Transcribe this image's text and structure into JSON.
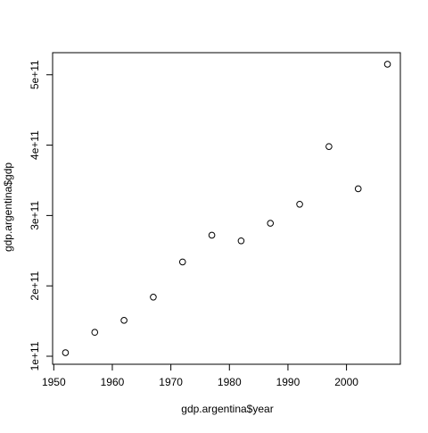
{
  "chart_data": {
    "type": "scatter",
    "xlabel": "gdp.argentina$year",
    "ylabel": "gdp.argentina$gdp",
    "xlim": [
      1950,
      2010
    ],
    "ylim": [
      100000000000,
      530000000000
    ],
    "x_ticks": [
      1950,
      1960,
      1970,
      1980,
      1990,
      2000
    ],
    "y_ticks": [
      100000000000,
      200000000000,
      300000000000,
      400000000000,
      500000000000
    ],
    "x_tick_labels": [
      "1950",
      "1960",
      "1970",
      "1980",
      "1990",
      "2000"
    ],
    "y_tick_labels": [
      "1e+11",
      "2e+11",
      "3e+11",
      "4e+11",
      "5e+11"
    ],
    "grid": false,
    "marker": "open-circle",
    "color": "#000000",
    "series": [
      {
        "x": [
          1952,
          1957,
          1962,
          1967,
          1972,
          1977,
          1982,
          1987,
          1992,
          1997,
          2002,
          2007
        ],
        "y": [
          105000000000,
          134000000000,
          151000000000,
          184000000000,
          234000000000,
          272000000000,
          264000000000,
          289000000000,
          316000000000,
          398000000000,
          338000000000,
          515000000000
        ]
      }
    ]
  }
}
